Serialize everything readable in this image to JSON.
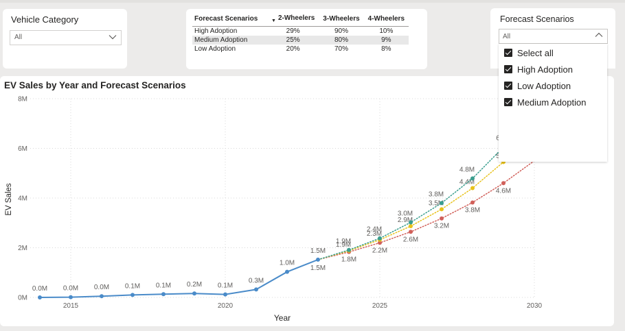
{
  "vehicle_slicer": {
    "title": "Vehicle Category",
    "value": "All"
  },
  "scenario_table": {
    "headers": [
      "Forecast Scenarios",
      "2-Wheelers",
      "3-Wheelers",
      "4-Wheelers"
    ],
    "rows": [
      [
        "High Adoption",
        "29%",
        "90%",
        "10%"
      ],
      [
        "Medium Adoption",
        "25%",
        "80%",
        "9%"
      ],
      [
        "Low Adoption",
        "20%",
        "70%",
        "8%"
      ]
    ]
  },
  "scenario_slicer": {
    "title": "Forecast Scenarios",
    "value": "All",
    "options": [
      "Select all",
      "High Adoption",
      "Low Adoption",
      "Medium Adoption"
    ]
  },
  "colors": {
    "actual": "#4a8bc9",
    "high": "#3a9e8f",
    "medium": "#e8c21a",
    "low": "#d1605a",
    "grid": "#d8d8d8",
    "axis_text": "#605e5c"
  },
  "chart_data": {
    "type": "line",
    "title": "EV Sales by Year and Forecast Scenarios",
    "xlabel": "Year",
    "ylabel": "EV Sales",
    "xlim": [
      2014,
      2030
    ],
    "ylim": [
      0,
      8
    ],
    "x_ticks": [
      2015,
      2020,
      2025,
      2030
    ],
    "y_ticks": [
      {
        "v": 0,
        "label": "0M"
      },
      {
        "v": 2,
        "label": "2M"
      },
      {
        "v": 4,
        "label": "4M"
      },
      {
        "v": 6,
        "label": "6M"
      },
      {
        "v": 8,
        "label": "8M"
      }
    ],
    "grid": true,
    "series": [
      {
        "key": "actual",
        "x": [
          2014,
          2015,
          2016,
          2017,
          2018,
          2019,
          2020,
          2021,
          2022,
          2023
        ],
        "y": [
          0.0,
          0.01,
          0.05,
          0.1,
          0.13,
          0.16,
          0.12,
          0.32,
          1.03,
          1.52
        ],
        "labels": [
          "0.0M",
          "0.0M",
          "0.0M",
          "0.1M",
          "0.1M",
          "0.2M",
          "0.1M",
          "0.3M",
          "1.0M",
          "1.5M"
        ]
      },
      {
        "key": "high",
        "x": [
          2023,
          2024,
          2025,
          2026,
          2027,
          2028,
          2029
        ],
        "y": [
          1.52,
          1.91,
          2.38,
          3.02,
          3.8,
          4.79,
          6.05
        ],
        "labels": [
          "",
          "1.9M",
          "2.4M",
          "3.0M",
          "3.8M",
          "4.8M",
          "6"
        ]
      },
      {
        "key": "medium",
        "x": [
          2023,
          2024,
          2025,
          2026,
          2027,
          2028,
          2029
        ],
        "y": [
          1.52,
          1.88,
          2.32,
          2.87,
          3.55,
          4.4,
          5.45
        ],
        "labels": [
          "",
          "1.9M",
          "2.3M",
          "2.9M",
          "3.5M",
          "4.4M",
          "5"
        ]
      },
      {
        "key": "low",
        "x": [
          2023,
          2024,
          2025,
          2026,
          2027,
          2028,
          2029,
          2030
        ],
        "y": [
          1.52,
          1.83,
          2.2,
          2.64,
          3.18,
          3.82,
          4.6,
          5.5
        ],
        "labels": [
          "1.5M",
          "1.8M",
          "2.2M",
          "2.6M",
          "3.2M",
          "3.8M",
          "4.6M",
          ""
        ]
      }
    ]
  }
}
